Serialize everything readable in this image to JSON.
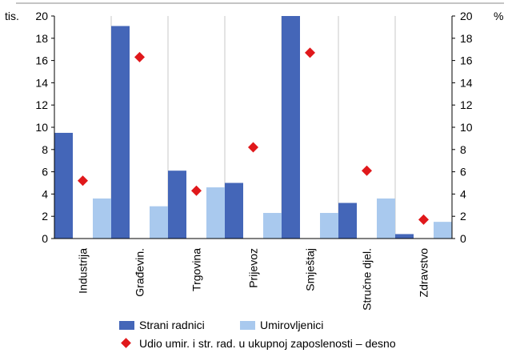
{
  "chart_data": {
    "type": "bar",
    "left_unit": "tis.",
    "right_unit": "%",
    "categories": [
      "Industrija",
      "Građevin.",
      "Trgovina",
      "Prijevoz",
      "Smještaj",
      "Stručne djel.",
      "Zdravstvo"
    ],
    "series": [
      {
        "name": "Strani radnici",
        "axis": "left",
        "kind": "bar",
        "color": "#4466b8",
        "values": [
          9.5,
          19.1,
          6.1,
          5.0,
          20.0,
          3.2,
          0.4
        ]
      },
      {
        "name": "Umirovljenici",
        "axis": "left",
        "kind": "bar",
        "color": "#a9c9ee",
        "values": [
          3.6,
          2.9,
          4.6,
          2.3,
          2.3,
          3.6,
          1.5
        ]
      },
      {
        "name": "Udio umir. i str. rad. u ukupnoj zaposlenosti – desno",
        "axis": "right",
        "kind": "marker",
        "color": "#e0181b",
        "values": [
          5.2,
          16.3,
          4.3,
          8.2,
          16.7,
          6.1,
          1.7
        ]
      }
    ],
    "ylim": [
      0,
      20
    ],
    "y2lim": [
      0,
      20
    ],
    "yticks": [
      0,
      2,
      4,
      6,
      8,
      10,
      12,
      14,
      16,
      18,
      20
    ],
    "grid": "vertical category separators",
    "legend_position": "bottom"
  }
}
